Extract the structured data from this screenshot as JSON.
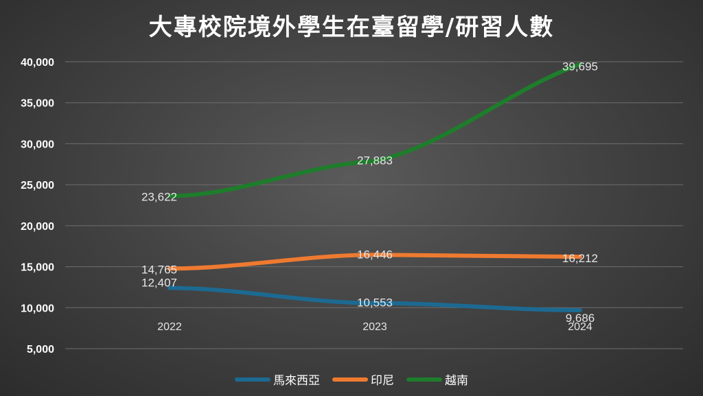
{
  "chart_data": {
    "type": "line",
    "title": "大專校院境外學生在臺留學/研習人數",
    "categories": [
      "2022",
      "2023",
      "2024"
    ],
    "ylim": [
      5000,
      40000
    ],
    "yticks": [
      "40,000",
      "35,000",
      "30,000",
      "25,000",
      "20,000",
      "15,000",
      "10,000",
      "5,000"
    ],
    "ytick_values": [
      40000,
      35000,
      30000,
      25000,
      20000,
      15000,
      10000,
      5000
    ],
    "grid": true,
    "legend_position": "bottom",
    "series": [
      {
        "name": "馬來西亞",
        "color": "#1c6a92",
        "values": [
          12407,
          10553,
          9686
        ],
        "labels": [
          "12,407",
          "10,553",
          "9,686"
        ]
      },
      {
        "name": "印尼",
        "color": "#ee7a30",
        "values": [
          14765,
          16446,
          16212
        ],
        "labels": [
          "14,765",
          "16,446",
          "16,212"
        ]
      },
      {
        "name": "越南",
        "color": "#1e7d2b",
        "values": [
          23622,
          27883,
          39695
        ],
        "labels": [
          "23,622",
          "27,883",
          "39,695"
        ]
      }
    ]
  }
}
